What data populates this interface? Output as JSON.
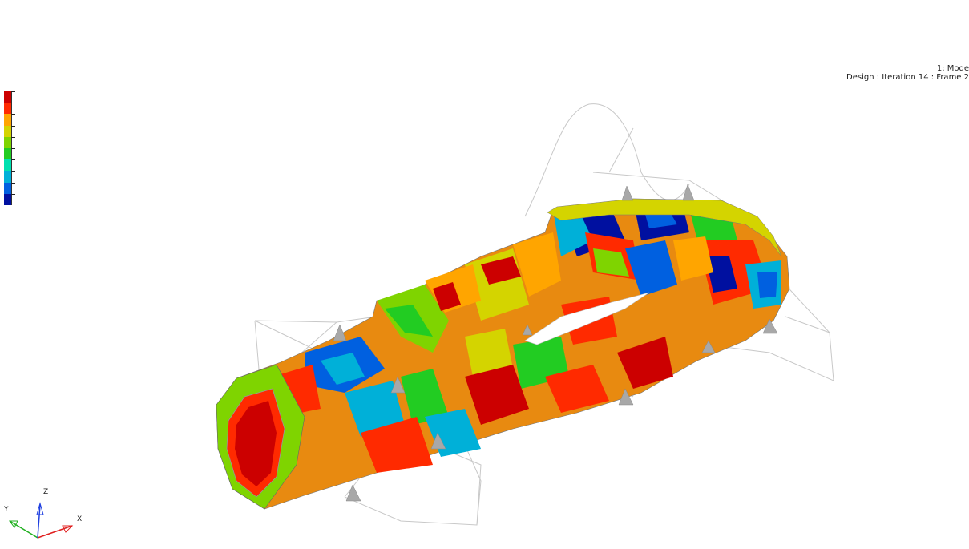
{
  "viewport": {
    "model_label": "1: Mode",
    "design_label": "Design : Iteration 14 : Frame 2"
  },
  "legend": {
    "colors": [
      "#cc0000",
      "#ff2a00",
      "#ffa500",
      "#d4d400",
      "#7fd400",
      "#22cc22",
      "#00e0b0",
      "#00b0d8",
      "#0060e0",
      "#0010a0"
    ]
  },
  "triad": {
    "x_label": "X",
    "y_label": "Y",
    "z_label": "Z",
    "x_color": "#e02020",
    "y_color": "#20b020",
    "z_color": "#2040e0"
  }
}
